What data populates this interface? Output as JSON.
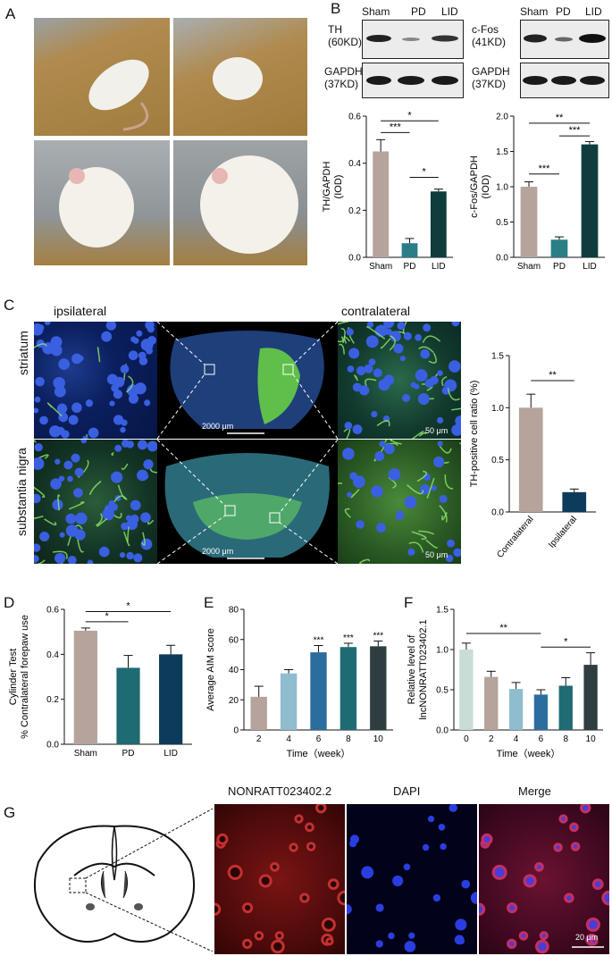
{
  "panels": {
    "A": "A",
    "B": "B",
    "C": "C",
    "D": "D",
    "E": "E",
    "F": "F",
    "G": "G"
  },
  "western": {
    "left": {
      "top_label_1": "TH",
      "top_label_2": "(60KD)",
      "bottom_label_1": "GAPDH",
      "bottom_label_2": "(37KD)"
    },
    "right": {
      "top_label_1": "c-Fos",
      "top_label_2": "(41KD)",
      "bottom_label_1": "GAPDH",
      "bottom_label_2": "(37KD)"
    },
    "lanes": [
      "Sham",
      "PD",
      "LID"
    ]
  },
  "sectionC": {
    "ipsilateral": "ipsilateral",
    "contralateral": "contralateral",
    "row1": "striatum",
    "row2": "substantia nigra",
    "scale_big": "2000 μm",
    "scale_small": "50 μm"
  },
  "sectionG": {
    "col1": "NONRATT023402.2",
    "col2": "DAPI",
    "col3": "Merge",
    "scale": "20 μm"
  },
  "chart_data": [
    {
      "id": "B-left",
      "type": "bar",
      "categories": [
        "Sham",
        "PD",
        "LID"
      ],
      "values": [
        0.45,
        0.06,
        0.28
      ],
      "errors": [
        0.05,
        0.02,
        0.01
      ],
      "ylabel": "TH/GAPDH (IOD)",
      "ylim": [
        0,
        0.6
      ],
      "yticks": [
        "0.0",
        "0.2",
        "0.4",
        "0.6"
      ],
      "colors": [
        "#b5a39c",
        "#2a7f86",
        "#0f3d3e"
      ],
      "sig": [
        "***",
        "*",
        "*"
      ]
    },
    {
      "id": "B-right",
      "type": "bar",
      "categories": [
        "Sham",
        "PD",
        "LID"
      ],
      "values": [
        1.0,
        0.25,
        1.6
      ],
      "errors": [
        0.07,
        0.04,
        0.04
      ],
      "ylabel": "c-Fos/GAPDH (IOD)",
      "ylim": [
        0,
        2.0
      ],
      "yticks": [
        "0.0",
        "0.5",
        "1.0",
        "1.5",
        "2.0"
      ],
      "colors": [
        "#b5a39c",
        "#2a7f86",
        "#0f3d3e"
      ],
      "sig": [
        "***",
        "***",
        "**"
      ]
    },
    {
      "id": "C",
      "type": "bar",
      "categories": [
        "Contralateral",
        "Ipsilateral"
      ],
      "values": [
        1.0,
        0.19
      ],
      "errors": [
        0.13,
        0.03
      ],
      "ylabel": "TH-positive cell ratio (%)",
      "ylim": [
        0,
        1.5
      ],
      "yticks": [
        "0.0",
        "0.5",
        "1.0",
        "1.5"
      ],
      "colors": [
        "#b5a39c",
        "#0d3b5c"
      ],
      "sig": [
        "**"
      ]
    },
    {
      "id": "D",
      "type": "bar",
      "categories": [
        "Sham",
        "PD",
        "LID"
      ],
      "values": [
        0.505,
        0.34,
        0.4
      ],
      "errors": [
        0.012,
        0.055,
        0.04
      ],
      "ylabel": "Cylinder Test % Contralateral forepaw use",
      "ylim": [
        0,
        0.6
      ],
      "yticks": [
        "0.0",
        "0.2",
        "0.4",
        "0.6"
      ],
      "colors": [
        "#b5a39c",
        "#1f6b73",
        "#0d3b5c"
      ],
      "sig": [
        "*",
        "*"
      ]
    },
    {
      "id": "E",
      "type": "bar",
      "categories": [
        "2",
        "4",
        "6",
        "8",
        "10"
      ],
      "values": [
        22,
        37.5,
        51.5,
        55,
        55.5
      ],
      "errors": [
        7,
        2.5,
        4.5,
        2.5,
        3.5
      ],
      "xlabel": "Time（week）",
      "ylabel": "Average AIM score",
      "ylim": [
        0,
        80
      ],
      "yticks": [
        "0",
        "20",
        "40",
        "60",
        "80"
      ],
      "colors": [
        "#b5a39c",
        "#8fbccf",
        "#2b6d9e",
        "#1f6b73",
        "#2d3d40"
      ],
      "sig": [
        "***",
        "***",
        "***"
      ]
    },
    {
      "id": "F",
      "type": "bar",
      "categories": [
        "0",
        "2",
        "4",
        "6",
        "8",
        "10"
      ],
      "values": [
        1.0,
        0.66,
        0.51,
        0.44,
        0.55,
        0.81
      ],
      "errors": [
        0.08,
        0.07,
        0.08,
        0.06,
        0.1,
        0.15
      ],
      "xlabel": "Time（week）",
      "ylabel": "Relative level of lncNONRATT023402.1",
      "ylim": [
        0,
        1.5
      ],
      "yticks": [
        "0.0",
        "0.5",
        "1.0",
        "1.5"
      ],
      "colors": [
        "#c9dcd6",
        "#b5a39c",
        "#8fbccf",
        "#2b6d9e",
        "#1f6b73",
        "#2d3d40"
      ],
      "sig": [
        "**",
        "*"
      ]
    }
  ]
}
